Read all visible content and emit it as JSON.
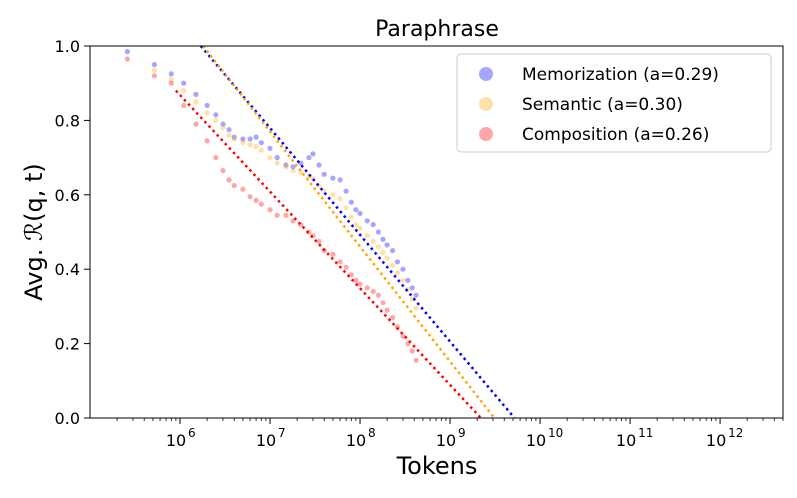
{
  "chart_data": {
    "type": "scatter",
    "title": "Paraphrase",
    "xlabel": "Tokens",
    "ylabel": "Avg. ℛ(q, t)",
    "x_scale": "log",
    "xlim": [
      100000,
      5000000000000
    ],
    "ylim": [
      0.0,
      1.0
    ],
    "x_tick_exponents": [
      6,
      7,
      8,
      9,
      10,
      11,
      12
    ],
    "y_ticks": [
      "0.0",
      "0.2",
      "0.4",
      "0.6",
      "0.8",
      "1.0"
    ],
    "grid": false,
    "legend_position": "top-right",
    "series": [
      {
        "name": "Memorization (a=0.29)",
        "color": "#0000ff",
        "fit_line": {
          "x": [
            1700000,
            5200000000
          ],
          "y": [
            1.0,
            0.0
          ]
        },
        "points": [
          [
            260000,
            0.985
          ],
          [
            520000,
            0.95
          ],
          [
            800000,
            0.925
          ],
          [
            1100000,
            0.9
          ],
          [
            1500000,
            0.87
          ],
          [
            2000000,
            0.84
          ],
          [
            2500000,
            0.815
          ],
          [
            3000000,
            0.79
          ],
          [
            3500000,
            0.775
          ],
          [
            4000000,
            0.755
          ],
          [
            5000000,
            0.75
          ],
          [
            6000000,
            0.75
          ],
          [
            7000000,
            0.755
          ],
          [
            8000000,
            0.74
          ],
          [
            10000000,
            0.725
          ],
          [
            12000000,
            0.7
          ],
          [
            15000000,
            0.68
          ],
          [
            18000000,
            0.675
          ],
          [
            22000000,
            0.685
          ],
          [
            27000000,
            0.7
          ],
          [
            30000000,
            0.71
          ],
          [
            35000000,
            0.68
          ],
          [
            40000000,
            0.655
          ],
          [
            50000000,
            0.645
          ],
          [
            60000000,
            0.64
          ],
          [
            70000000,
            0.61
          ],
          [
            80000000,
            0.58
          ],
          [
            90000000,
            0.56
          ],
          [
            100000000,
            0.55
          ],
          [
            120000000,
            0.53
          ],
          [
            140000000,
            0.52
          ],
          [
            160000000,
            0.5
          ],
          [
            180000000,
            0.48
          ],
          [
            200000000,
            0.465
          ],
          [
            230000000,
            0.45
          ],
          [
            260000000,
            0.42
          ],
          [
            300000000,
            0.4
          ],
          [
            340000000,
            0.37
          ],
          [
            380000000,
            0.35
          ],
          [
            420000000,
            0.33
          ]
        ]
      },
      {
        "name": "Semantic (a=0.30)",
        "color": "#ffa500",
        "fit_line": {
          "x": [
            1800000,
            3100000000
          ],
          "y": [
            1.0,
            0.0
          ]
        },
        "points": [
          [
            520000,
            0.935
          ],
          [
            800000,
            0.91
          ],
          [
            1100000,
            0.88
          ],
          [
            1500000,
            0.85
          ],
          [
            2000000,
            0.82
          ],
          [
            2500000,
            0.8
          ],
          [
            3000000,
            0.78
          ],
          [
            3500000,
            0.76
          ],
          [
            4000000,
            0.75
          ],
          [
            5000000,
            0.74
          ],
          [
            6000000,
            0.735
          ],
          [
            7000000,
            0.73
          ],
          [
            8000000,
            0.72
          ],
          [
            10000000,
            0.7
          ],
          [
            12000000,
            0.685
          ],
          [
            15000000,
            0.675
          ],
          [
            18000000,
            0.665
          ],
          [
            22000000,
            0.66
          ],
          [
            27000000,
            0.65
          ],
          [
            30000000,
            0.645
          ],
          [
            35000000,
            0.625
          ],
          [
            40000000,
            0.61
          ],
          [
            50000000,
            0.6
          ],
          [
            60000000,
            0.59
          ],
          [
            70000000,
            0.565
          ],
          [
            80000000,
            0.54
          ],
          [
            90000000,
            0.52
          ],
          [
            100000000,
            0.51
          ],
          [
            120000000,
            0.49
          ],
          [
            140000000,
            0.475
          ],
          [
            160000000,
            0.46
          ],
          [
            180000000,
            0.445
          ],
          [
            200000000,
            0.43
          ],
          [
            230000000,
            0.41
          ],
          [
            260000000,
            0.39
          ],
          [
            300000000,
            0.37
          ],
          [
            340000000,
            0.345
          ],
          [
            380000000,
            0.32
          ],
          [
            420000000,
            0.295
          ]
        ]
      },
      {
        "name": "Composition (a=0.26)",
        "color": "#ff0000",
        "fit_line": {
          "x": [
            900000,
            2200000000
          ],
          "y": [
            0.88,
            0.0
          ]
        },
        "points": [
          [
            260000,
            0.965
          ],
          [
            520000,
            0.92
          ],
          [
            800000,
            0.9
          ],
          [
            1100000,
            0.84
          ],
          [
            1500000,
            0.79
          ],
          [
            2000000,
            0.745
          ],
          [
            2500000,
            0.7
          ],
          [
            3000000,
            0.665
          ],
          [
            3500000,
            0.64
          ],
          [
            4000000,
            0.625
          ],
          [
            5000000,
            0.615
          ],
          [
            6000000,
            0.595
          ],
          [
            7000000,
            0.585
          ],
          [
            8000000,
            0.575
          ],
          [
            10000000,
            0.56
          ],
          [
            12000000,
            0.545
          ],
          [
            15000000,
            0.545
          ],
          [
            18000000,
            0.53
          ],
          [
            22000000,
            0.52
          ],
          [
            27000000,
            0.5
          ],
          [
            30000000,
            0.49
          ],
          [
            35000000,
            0.475
          ],
          [
            40000000,
            0.45
          ],
          [
            50000000,
            0.44
          ],
          [
            60000000,
            0.42
          ],
          [
            70000000,
            0.405
          ],
          [
            80000000,
            0.385
          ],
          [
            90000000,
            0.37
          ],
          [
            100000000,
            0.36
          ],
          [
            120000000,
            0.35
          ],
          [
            140000000,
            0.34
          ],
          [
            160000000,
            0.33
          ],
          [
            180000000,
            0.31
          ],
          [
            200000000,
            0.29
          ],
          [
            230000000,
            0.27
          ],
          [
            260000000,
            0.245
          ],
          [
            300000000,
            0.22
          ],
          [
            340000000,
            0.2
          ],
          [
            380000000,
            0.18
          ],
          [
            420000000,
            0.155
          ]
        ]
      }
    ]
  }
}
